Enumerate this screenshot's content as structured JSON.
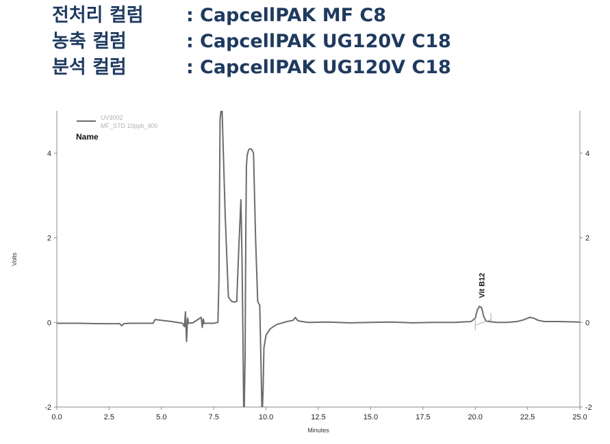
{
  "header": {
    "lines": [
      {
        "label": "전처리 컬럼",
        "sep": ":",
        "value": "CapcellPAK MF C8"
      },
      {
        "label": "농축 컬럼",
        "sep": ":",
        "value": "CapcellPAK UG120V C18"
      },
      {
        "label": "분석 컬럼",
        "sep": ":",
        "value": "CapcellPAK UG120V C18"
      }
    ]
  },
  "chart_data": {
    "type": "line",
    "xlabel": "Minutes",
    "ylabel": "Volts",
    "xlim": [
      0,
      25
    ],
    "ylim": [
      -2,
      5
    ],
    "x_ticks": [
      "0.0",
      "2.5",
      "5.0",
      "7.5",
      "10.0",
      "12.5",
      "15.0",
      "17.5",
      "20.0",
      "22.5",
      "25.0"
    ],
    "y_ticks": [
      "-2",
      "0",
      "2",
      "4"
    ],
    "legend": {
      "line1": "UV3002",
      "line2": "MF_STD 10ppb_400",
      "name_label": "Name"
    },
    "series": [
      {
        "name": "UV3002",
        "color": "#6b6b6b",
        "x": [
          0.0,
          1.0,
          2.0,
          3.0,
          3.1,
          3.2,
          3.5,
          4.0,
          4.6,
          4.7,
          5.0,
          5.5,
          6.0,
          6.1,
          6.15,
          6.2,
          6.25,
          6.3,
          6.5,
          6.9,
          6.95,
          7.0,
          7.05,
          7.1,
          7.5,
          7.7,
          7.75,
          7.8,
          7.85,
          7.9,
          8.05,
          8.2,
          8.35,
          8.5,
          8.6,
          8.7,
          8.8,
          8.85,
          8.9,
          8.93,
          8.96,
          9.0,
          9.03,
          9.06,
          9.1,
          9.15,
          9.2,
          9.3,
          9.4,
          9.5,
          9.6,
          9.7,
          9.75,
          9.8,
          9.83,
          9.86,
          9.9,
          10.0,
          10.2,
          10.5,
          11.0,
          11.3,
          11.4,
          11.5,
          11.6,
          12.0,
          13.0,
          14.0,
          15.0,
          16.0,
          17.0,
          18.0,
          19.0,
          19.8,
          20.0,
          20.1,
          20.2,
          20.3,
          20.4,
          20.5,
          20.6,
          20.7,
          21.0,
          21.5,
          22.0,
          22.3,
          22.6,
          22.8,
          23.0,
          23.3,
          24.0,
          25.0
        ],
        "y": [
          -0.02,
          -0.02,
          -0.03,
          -0.03,
          -0.08,
          -0.03,
          -0.02,
          -0.02,
          -0.02,
          0.07,
          0.05,
          0.02,
          -0.02,
          -0.1,
          0.25,
          -0.45,
          0.1,
          -0.02,
          -0.01,
          0.12,
          -0.12,
          0.08,
          -0.03,
          -0.02,
          -0.02,
          0.0,
          1.0,
          4.8,
          5.0,
          5.0,
          2.5,
          0.6,
          0.5,
          0.48,
          0.5,
          1.8,
          2.9,
          1.5,
          -0.5,
          -2.0,
          -2.0,
          -0.8,
          2.0,
          3.7,
          3.95,
          4.05,
          4.1,
          4.1,
          4.0,
          2.0,
          0.5,
          0.4,
          -0.8,
          -2.0,
          -2.0,
          -1.6,
          -0.6,
          -0.3,
          -0.15,
          -0.05,
          0.02,
          0.05,
          0.12,
          0.05,
          0.03,
          0.0,
          0.01,
          -0.01,
          0.0,
          0.01,
          -0.01,
          0.0,
          0.0,
          0.02,
          0.1,
          0.3,
          0.38,
          0.35,
          0.15,
          0.04,
          0.02,
          0.02,
          0.0,
          0.0,
          0.02,
          0.06,
          0.12,
          0.1,
          0.05,
          0.02,
          0.02,
          0.01
        ]
      }
    ],
    "annotations": [
      {
        "text": "Vit B12",
        "x": 20.3,
        "y": 0.38
      }
    ]
  }
}
